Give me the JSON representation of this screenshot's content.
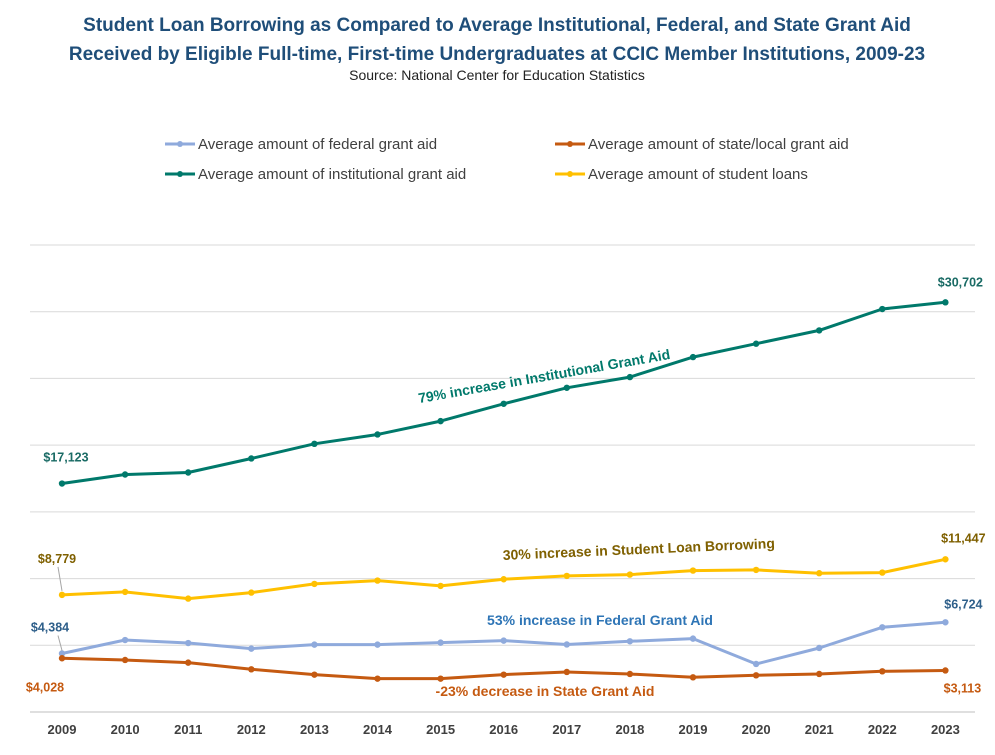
{
  "chart_data": {
    "type": "line",
    "title_line1": "Student Loan Borrowing as Compared to Average Institutional, Federal, and State Grant Aid",
    "title_line2": "Received by Eligible Full-time, First-time Undergraduates at CCIC Member Institutions, 2009-23",
    "subtitle": "Source: National Center for Education Statistics",
    "x": [
      "2009",
      "2010",
      "2011",
      "2012",
      "2013",
      "2014",
      "2015",
      "2016",
      "2017",
      "2018",
      "2019",
      "2020",
      "2021",
      "2022",
      "2023"
    ],
    "ylim": [
      0,
      35000
    ],
    "grid": true,
    "legend_position": "top",
    "series": [
      {
        "id": "federal",
        "name": "Average amount of federal grant aid",
        "color": "#8faadc",
        "values": [
          4384,
          5394,
          5170,
          4750,
          5050,
          5050,
          5200,
          5350,
          5060,
          5300,
          5500,
          3600,
          4800,
          6350,
          6724
        ],
        "first_label": "$4,384",
        "last_label": "$6,724",
        "label_color": "#2e5f8a"
      },
      {
        "id": "state",
        "name": "Average amount of state/local grant aid",
        "color": "#c55a11",
        "values": [
          4028,
          3900,
          3700,
          3200,
          2800,
          2500,
          2500,
          2800,
          3000,
          2850,
          2600,
          2750,
          2850,
          3050,
          3113
        ],
        "first_label": "$4,028",
        "last_label": "$3,113",
        "label_color": "#c55a11"
      },
      {
        "id": "institutional",
        "name": "Average amount of institutional grant aid",
        "color": "#00796b",
        "values": [
          17123,
          17800,
          17950,
          19000,
          20100,
          20800,
          21800,
          23100,
          24300,
          25100,
          26600,
          27600,
          28600,
          30200,
          30702
        ],
        "first_label": "$17,123",
        "last_label": "$30,702",
        "label_color": "#1a6b65"
      },
      {
        "id": "loans",
        "name": "Average amount of student loans",
        "color": "#ffc000",
        "values": [
          8779,
          9000,
          8500,
          8950,
          9600,
          9850,
          9450,
          9950,
          10200,
          10300,
          10600,
          10650,
          10400,
          10450,
          11447
        ],
        "first_label": "$8,779",
        "last_label": "$11,447",
        "label_color": "#7f6000"
      }
    ],
    "annotations": [
      {
        "text": "79% increase in Institutional Grant Aid",
        "color": "#00796b"
      },
      {
        "text": "30% increase in Student Loan Borrowing",
        "color": "#7f6000"
      },
      {
        "text": "53% increase in Federal Grant Aid",
        "color": "#2e75b6"
      },
      {
        "text": "-23% decrease in State Grant Aid",
        "color": "#c55a11"
      }
    ]
  }
}
